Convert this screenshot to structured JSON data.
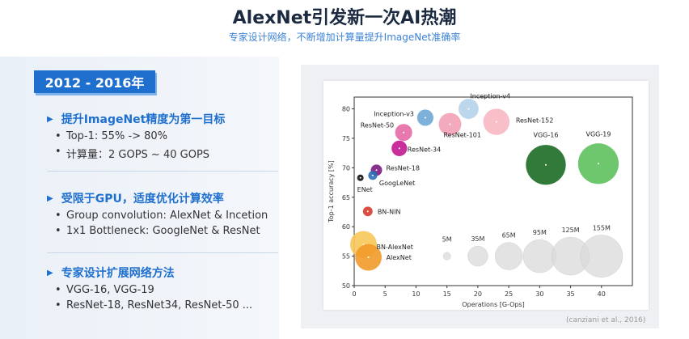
{
  "title": "AlexNet引发新一次AI热潮",
  "subtitle": "专家设计网络，不断增加计算量提升ImageNet准确率",
  "year_badge": "2012 - 2016年",
  "sections": [
    {
      "heading": "提升ImageNet精度为第一目标",
      "bullets": [
        "Top-1: 55% -> 80%",
        "计算量：2 GOPS ~ 40 GOPS"
      ]
    },
    {
      "heading": "受限于GPU，适度优化计算效率",
      "bullets": [
        "Group convolution: AlexNet & Incetion",
        "1x1 Bottleneck: GoogleNet & ResNet"
      ]
    },
    {
      "heading": "专家设计扩展网络方法",
      "bullets": [
        "VGG-16, VGG-19",
        "ResNet-18, ResNet34, ResNet-50 ..."
      ]
    }
  ],
  "citation": "(canziani et al., 2016)",
  "chart_data": {
    "type": "scatter",
    "xlabel": "Operations [G-Ops]",
    "ylabel": "Top-1 accuracy [%]",
    "xlim": [
      0,
      45
    ],
    "ylim": [
      50,
      82
    ],
    "xticks": [
      0,
      5,
      10,
      15,
      20,
      25,
      30,
      35,
      40
    ],
    "yticks": [
      50,
      55,
      60,
      65,
      70,
      75,
      80
    ],
    "points": [
      {
        "name": "Inception-v4",
        "x": 18.5,
        "y": 80.0,
        "params_m": 35,
        "color": "#b5d3ea"
      },
      {
        "name": "Inception-v3",
        "x": 11.5,
        "y": 78.5,
        "params_m": 23,
        "color": "#6fa8d6"
      },
      {
        "name": "ResNet-152",
        "x": 23.0,
        "y": 77.8,
        "params_m": 60,
        "color": "#f7b8c3"
      },
      {
        "name": "ResNet-101",
        "x": 15.5,
        "y": 77.4,
        "params_m": 44,
        "color": "#f3a1b6"
      },
      {
        "name": "ResNet-50",
        "x": 8.0,
        "y": 76.0,
        "params_m": 25,
        "color": "#e46aa6"
      },
      {
        "name": "ResNet-34",
        "x": 7.3,
        "y": 73.3,
        "params_m": 21,
        "color": "#c2188f"
      },
      {
        "name": "VGG-16",
        "x": 31.0,
        "y": 70.5,
        "params_m": 138,
        "color": "#1c6b25"
      },
      {
        "name": "VGG-19",
        "x": 39.5,
        "y": 70.7,
        "params_m": 143,
        "color": "#5ec05d"
      },
      {
        "name": "ResNet-18",
        "x": 3.6,
        "y": 69.6,
        "params_m": 11,
        "color": "#7b1c82"
      },
      {
        "name": "GoogLeNet",
        "x": 3.0,
        "y": 68.7,
        "params_m": 7,
        "color": "#2b6fb6"
      },
      {
        "name": "ENet",
        "x": 1.0,
        "y": 68.3,
        "params_m": 1,
        "color": "#111111"
      },
      {
        "name": "BN-NIN",
        "x": 2.2,
        "y": 62.6,
        "params_m": 8,
        "color": "#d63b2f"
      },
      {
        "name": "BN-AlexNet",
        "x": 1.5,
        "y": 57.0,
        "params_m": 62,
        "color": "#f6c659"
      },
      {
        "name": "AlexNet",
        "x": 2.3,
        "y": 54.8,
        "params_m": 61,
        "color": "#f19a2a"
      }
    ],
    "legend": [
      {
        "label": "5M",
        "params_m": 5,
        "x": 15.0
      },
      {
        "label": "35M",
        "params_m": 35,
        "x": 20.0
      },
      {
        "label": "65M",
        "params_m": 65,
        "x": 25.0
      },
      {
        "label": "95M",
        "params_m": 95,
        "x": 30.0
      },
      {
        "label": "125M",
        "params_m": 125,
        "x": 35.0
      },
      {
        "label": "155M",
        "params_m": 155,
        "x": 40.0
      }
    ],
    "legend_y": 55.0
  }
}
